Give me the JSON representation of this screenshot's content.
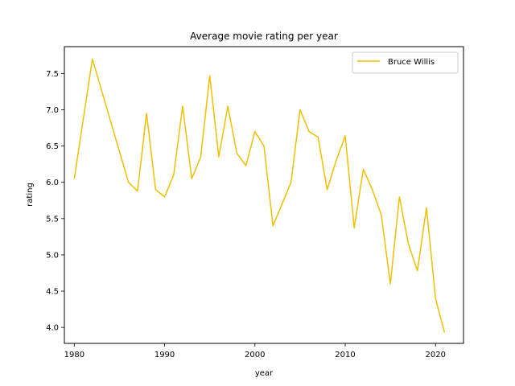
{
  "chart_data": {
    "type": "line",
    "title": "Average movie rating per year",
    "xlabel": "year",
    "ylabel": "rating",
    "xlim": [
      1978.9,
      2023.1
    ],
    "ylim": [
      3.78,
      7.87
    ],
    "xticks": [
      1980,
      1990,
      2000,
      2010,
      2020
    ],
    "yticks": [
      4.0,
      4.5,
      5.0,
      5.5,
      6.0,
      6.5,
      7.0,
      7.5
    ],
    "grid": false,
    "legend_position": "top-right",
    "series": [
      {
        "name": "Bruce Willis",
        "color": "#f0c000",
        "x": [
          1980,
          1982,
          1986,
          1987,
          1988,
          1989,
          1990,
          1991,
          1992,
          1993,
          1994,
          1995,
          1996,
          1997,
          1998,
          1999,
          2000,
          2001,
          2002,
          2004,
          2005,
          2006,
          2007,
          2008,
          2009,
          2010,
          2011,
          2012,
          2013,
          2014,
          2015,
          2016,
          2017,
          2018,
          2019,
          2020,
          2021
        ],
        "y": [
          6.05,
          7.7,
          6.0,
          5.88,
          6.95,
          5.9,
          5.8,
          6.1,
          7.05,
          6.05,
          6.35,
          7.47,
          6.35,
          7.05,
          6.4,
          6.23,
          6.7,
          6.5,
          5.4,
          6.0,
          7.0,
          6.7,
          6.62,
          5.9,
          6.3,
          6.64,
          5.37,
          6.18,
          5.9,
          5.55,
          4.6,
          5.8,
          5.15,
          4.78,
          5.65,
          4.4,
          3.93
        ]
      }
    ]
  }
}
